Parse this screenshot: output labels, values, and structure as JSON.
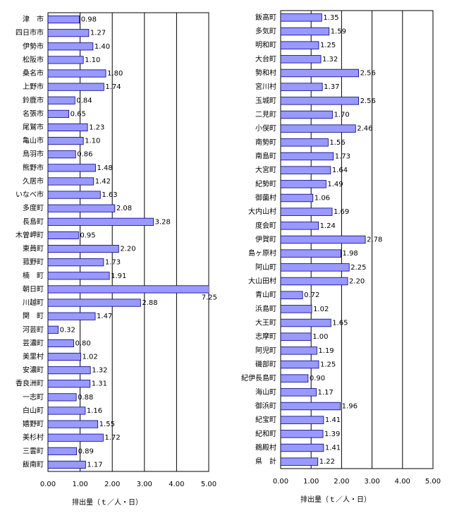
{
  "chart_data": [
    {
      "type": "bar",
      "orientation": "horizontal",
      "x_label": "排出量（ｔ／人・日）",
      "color": "#9999ff",
      "grid": true,
      "xlim": [
        0,
        5
      ],
      "xticks": [
        {
          "value": 0,
          "label": "0.00"
        },
        {
          "value": 1,
          "label": "1.00"
        },
        {
          "value": 2,
          "label": "2.00"
        },
        {
          "value": 3,
          "label": "3.00"
        },
        {
          "value": 4,
          "label": "4.00"
        },
        {
          "value": 5,
          "label": "5.00"
        }
      ],
      "categories": [
        "津　市",
        "四日市市",
        "伊勢市",
        "松阪市",
        "桑名市",
        "上野市",
        "鈴鹿市",
        "名張市",
        "尾鷲市",
        "亀山市",
        "鳥羽市",
        "熊野市",
        "久居市",
        "いなべ市",
        "多度町",
        "長島町",
        "木曽岬町",
        "東員町",
        "菰野町",
        "楠　町",
        "朝日町",
        "川越町",
        "関　町",
        "河芸町",
        "芸濃町",
        "美里村",
        "安濃町",
        "香良洲町",
        "一志町",
        "白山町",
        "嬉野町",
        "美杉村",
        "三雲町",
        "飯南町"
      ],
      "values": [
        0.98,
        1.27,
        1.4,
        1.1,
        1.8,
        1.74,
        0.84,
        0.65,
        1.23,
        1.1,
        0.86,
        1.48,
        1.42,
        1.63,
        2.08,
        3.28,
        0.95,
        2.2,
        1.73,
        1.91,
        7.25,
        2.88,
        1.47,
        0.32,
        0.8,
        1.02,
        1.32,
        1.31,
        0.88,
        1.16,
        1.55,
        1.72,
        0.89,
        1.17
      ],
      "value_labels": [
        "0.98",
        "1.27",
        "1.40",
        "1.10",
        "1.80",
        "1.74",
        "0.84",
        "0.65",
        "1.23",
        "1.10",
        "0.86",
        "1.48",
        "1.42",
        "1.63",
        "2.08",
        "3.28",
        "0.95",
        "2.20",
        "1.73",
        "1.91",
        "7.25",
        "2.88",
        "1.47",
        "0.32",
        "0.80",
        "1.02",
        "1.32",
        "1.31",
        "0.88",
        "1.16",
        "1.55",
        "1.72",
        "0.89",
        "1.17"
      ]
    },
    {
      "type": "bar",
      "orientation": "horizontal",
      "x_label": "排出量（ｔ／人・日）",
      "color": "#9999ff",
      "grid": true,
      "xlim": [
        0,
        5
      ],
      "xticks": [
        {
          "value": 0,
          "label": "0.00"
        },
        {
          "value": 1,
          "label": "1.00"
        },
        {
          "value": 2,
          "label": "2.00"
        },
        {
          "value": 3,
          "label": "3.00"
        },
        {
          "value": 4,
          "label": "4.00"
        },
        {
          "value": 5,
          "label": "5.00"
        }
      ],
      "categories": [
        "飯高町",
        "多気町",
        "明和町",
        "大台町",
        "勢和村",
        "宮川村",
        "玉城町",
        "二見町",
        "小俣町",
        "南勢町",
        "南島町",
        "大宮町",
        "紀勢町",
        "御薗村",
        "大内山村",
        "度会町",
        "伊賀町",
        "島ヶ原村",
        "阿山町",
        "大山田村",
        "青山町",
        "浜島町",
        "大王町",
        "志摩町",
        "阿児町",
        "磯部町",
        "紀伊長島町",
        "海山町",
        "御浜町",
        "紀宝町",
        "紀和町",
        "鵜殿村",
        "県　計"
      ],
      "values": [
        1.35,
        1.59,
        1.25,
        1.32,
        2.56,
        1.37,
        2.56,
        1.7,
        2.46,
        1.56,
        1.73,
        1.64,
        1.49,
        1.06,
        1.69,
        1.24,
        2.78,
        1.98,
        2.25,
        2.2,
        0.72,
        1.02,
        1.65,
        1.0,
        1.19,
        1.25,
        0.9,
        1.17,
        1.96,
        1.41,
        1.39,
        1.41,
        1.22
      ],
      "value_labels": [
        "1.35",
        "1.59",
        "1.25",
        "1.32",
        "2.56",
        "1.37",
        "2.56",
        "1.70",
        "2.46",
        "1.56",
        "1.73",
        "1.64",
        "1.49",
        "1.06",
        "1.69",
        "1.24",
        "2.78",
        "1.98",
        "2.25",
        "2.20",
        "0.72",
        "1.02",
        "1.65",
        "1.00",
        "1.19",
        "1.25",
        "0.90",
        "1.17",
        "1.96",
        "1.41",
        "1.39",
        "1.41",
        "1.22"
      ]
    }
  ]
}
